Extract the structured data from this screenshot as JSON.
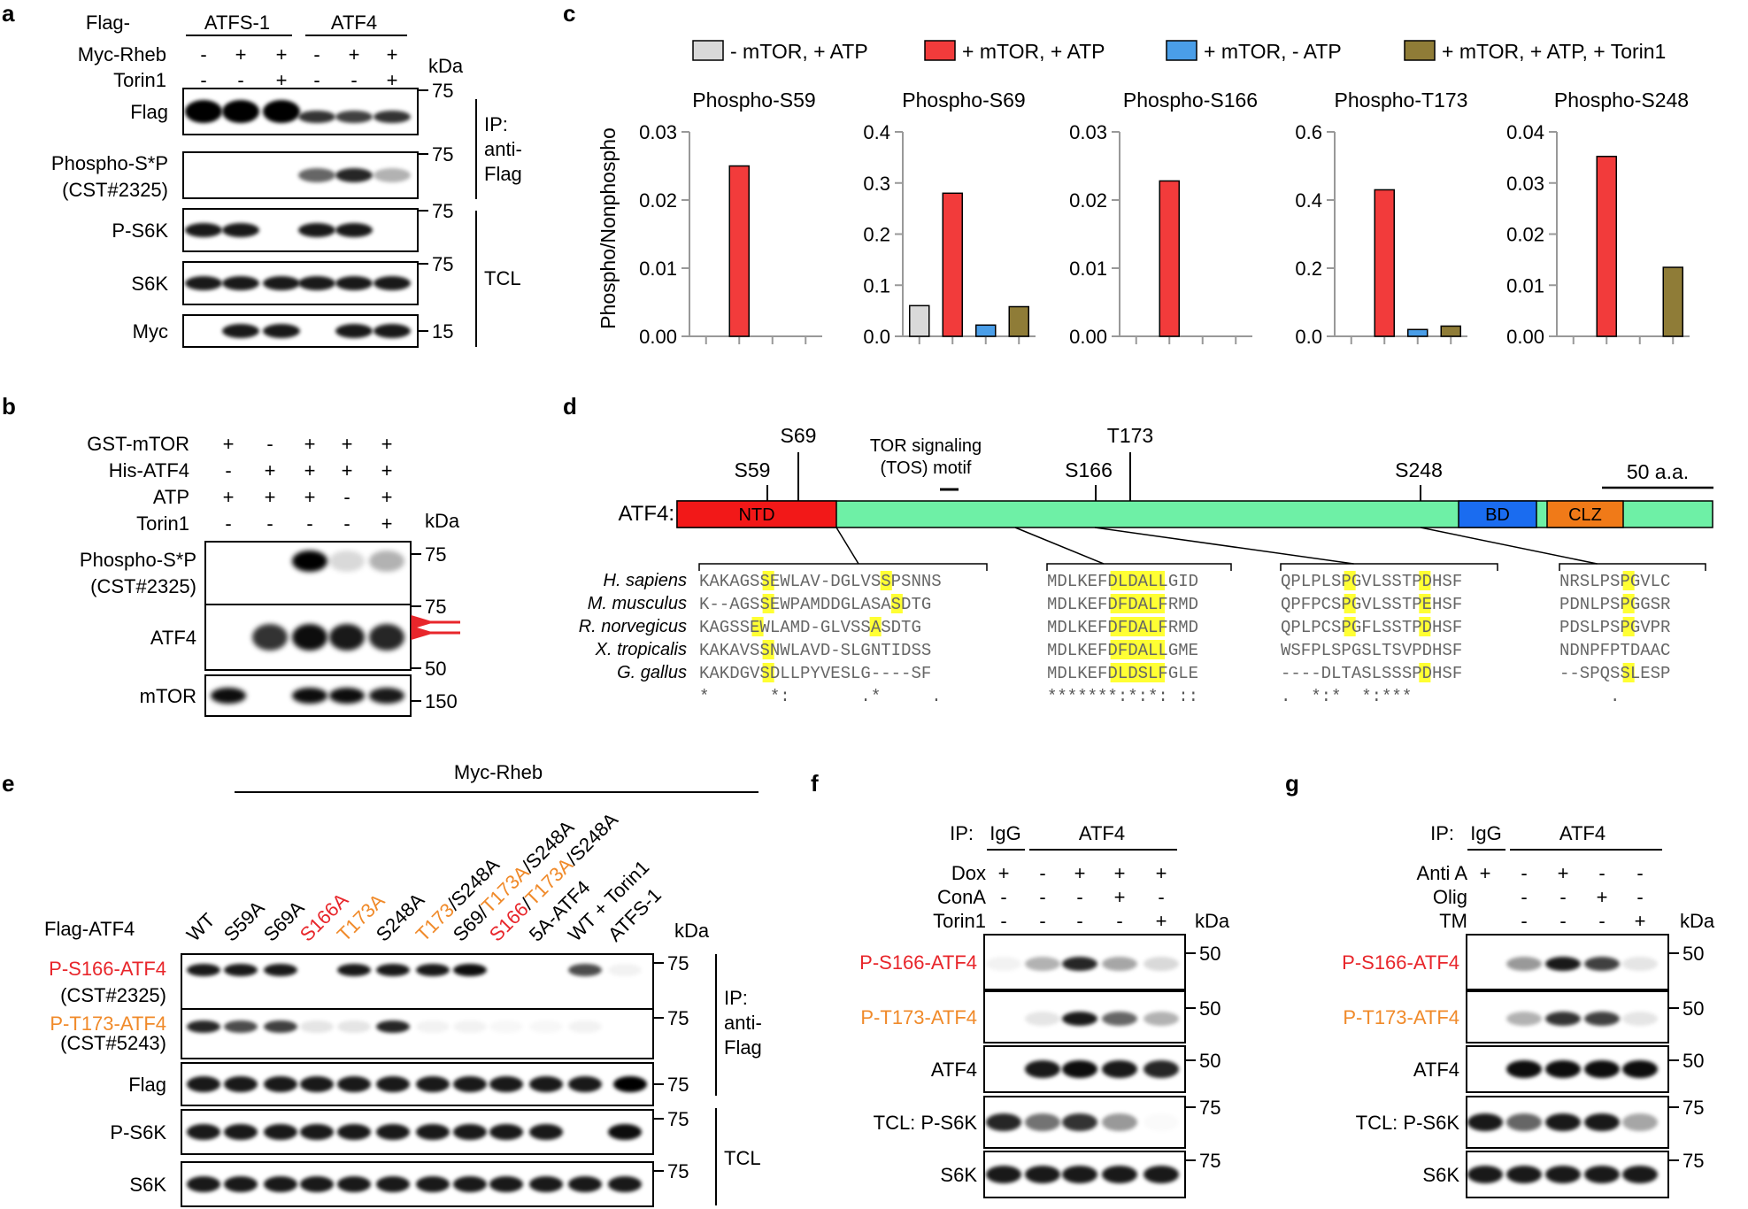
{
  "panel_letters": {
    "a": "a",
    "b": "b",
    "c": "c",
    "d": "d",
    "e": "e",
    "f": "f",
    "g": "g"
  },
  "colors": {
    "red": "#e8262b",
    "orange": "#f08a2a",
    "black": "#000000",
    "bar_gray": "#d9d9d9",
    "bar_red": "#f23b3b",
    "bar_blue": "#4a9ee8",
    "bar_olive": "#8f7c37",
    "ntd": "#f21818",
    "main": "#6ef0a6",
    "bd": "#1a6cf0",
    "clz": "#f07a18",
    "highlight": "#ffff33"
  },
  "panel_a": {
    "flag_label": "Flag-",
    "atfs1": "ATFS-1",
    "atf4": "ATF4",
    "row_labels": [
      "Myc-Rheb",
      "Torin1"
    ],
    "myc_rheb": [
      "-",
      "+",
      "+",
      "-",
      "+",
      "+"
    ],
    "torin1": [
      "-",
      "-",
      "+",
      "-",
      "-",
      "+"
    ],
    "kda": "kDa",
    "blots": [
      {
        "label": "Flag",
        "mw": "75"
      },
      {
        "label": "Phospho-S*P",
        "label2": "(CST#2325)",
        "mw": "75"
      },
      {
        "label": "P-S6K",
        "mw": "75"
      },
      {
        "label": "S6K",
        "mw": "75"
      },
      {
        "label": "Myc",
        "mw": "15"
      }
    ],
    "ip": [
      "IP:",
      "anti-",
      "Flag"
    ],
    "tcl": "TCL"
  },
  "panel_b": {
    "rows": [
      {
        "label": "GST-mTOR",
        "signs": [
          "+",
          "-",
          "+",
          "+",
          "+"
        ]
      },
      {
        "label": "His-ATF4",
        "signs": [
          "-",
          "+",
          "+",
          "+",
          "+"
        ]
      },
      {
        "label": "ATP",
        "signs": [
          "+",
          "+",
          "+",
          "-",
          "+"
        ]
      },
      {
        "label": "Torin1",
        "signs": [
          "-",
          "-",
          "-",
          "-",
          "+"
        ]
      }
    ],
    "kda": "kDa",
    "blots": [
      {
        "label": "Phospho-S*P",
        "label2": "(CST#2325)",
        "mw": "75"
      },
      {
        "label": "ATF4",
        "mw": "75",
        "mw2": "50"
      },
      {
        "label": "mTOR",
        "mw": "150"
      }
    ]
  },
  "chart_data": {
    "type": "bar",
    "legend": [
      "- mTOR, + ATP",
      "+ mTOR, + ATP",
      "+ mTOR, - ATP",
      "+ mTOR, + ATP, + Torin1"
    ],
    "ylabel": "Phospho/Nonphospho",
    "series_colors": [
      "#d9d9d9",
      "#f23b3b",
      "#4a9ee8",
      "#8f7c37"
    ],
    "subplots": [
      {
        "title": "Phospho-S59",
        "ylim": [
          0,
          0.03
        ],
        "ticks": [
          "0.00",
          "0.01",
          "0.02",
          "0.03"
        ],
        "tickvals": [
          0,
          0.01,
          0.02,
          0.03
        ],
        "values": [
          0,
          0.025,
          0,
          0
        ]
      },
      {
        "title": "Phospho-S69",
        "ylim": [
          0,
          0.4
        ],
        "ticks": [
          "0.0",
          "0.1",
          "0.2",
          "0.3",
          "0.4"
        ],
        "tickvals": [
          0,
          0.1,
          0.2,
          0.3,
          0.4
        ],
        "values": [
          0.06,
          0.28,
          0.022,
          0.058
        ]
      },
      {
        "title": "Phospho-S166",
        "ylim": [
          0,
          0.03
        ],
        "ticks": [
          "0.00",
          "0.01",
          "0.02",
          "0.03"
        ],
        "tickvals": [
          0,
          0.01,
          0.02,
          0.03
        ],
        "values": [
          0,
          0.0228,
          0,
          0
        ]
      },
      {
        "title": "Phospho-T173",
        "ylim": [
          0,
          0.6
        ],
        "ticks": [
          "0.0",
          "0.2",
          "0.4",
          "0.6"
        ],
        "tickvals": [
          0,
          0.2,
          0.4,
          0.6
        ],
        "values": [
          0,
          0.43,
          0.02,
          0.03
        ]
      },
      {
        "title": "Phospho-S248",
        "ylim": [
          0,
          0.04
        ],
        "ticks": [
          "0.00",
          "0.01",
          "0.02",
          "0.03",
          "0.04"
        ],
        "tickvals": [
          0,
          0.01,
          0.02,
          0.03,
          0.04
        ],
        "values": [
          0,
          0.0352,
          0,
          0.0135
        ]
      }
    ]
  },
  "panel_d": {
    "site_labels": [
      "S59",
      "S69",
      "T173",
      "S166",
      "S248"
    ],
    "tos": [
      "TOR signaling",
      "(TOS) motif"
    ],
    "scale": "50 a.a.",
    "protein": "ATF4:",
    "domains": [
      "NTD",
      "BD",
      "CLZ"
    ],
    "species": [
      "H. sapiens",
      "M. musculus",
      "R. norvegicus",
      "X. tropicalis",
      "G. gallus"
    ],
    "blocks": [
      [
        "KAKAGSSEWLAV-DGLVSSPSNNS",
        "K--AGSSEWPAMDDGLASASDTG",
        "KAGSSEWLAMD-GLVSSASDTG",
        "KAKAVSSNWLAVD-SLGNTIDSS",
        "KAKDGVSDLLPYVESLG----SF",
        "*      *:       .*     ."
      ],
      [
        "MDLKEFDLDALLGID",
        "MDLKEFDFDALFRMD",
        "MDLKEFDFDALFRMD",
        "MDLKEFDFDALLGME",
        "MDLKEFDLDSLFGLE",
        "*******:*:*: ::"
      ],
      [
        "QPLPLSPGVLSSTPDHSF",
        "QPFPCSPGVLSSTPEHSF",
        "QPLPCSPGFLSSTPDHSF",
        "WSFPLSPGSLTSVPDHSF",
        "----DLTASLSSSPDHSF",
        ".  *:*  *:***"
      ],
      [
        "NRSLPSPGVLC",
        "PDNLPSPGGSR",
        "PDSLPSPGVPR",
        "NDNPFPTDAAC",
        "--SPQSSLESP",
        "     ."
      ]
    ]
  },
  "panel_e": {
    "myc_rheb": "Myc-Rheb",
    "flag_atf4": "Flag-ATF4",
    "lanes": [
      {
        "parts": [
          [
            "WT",
            "k"
          ]
        ]
      },
      {
        "parts": [
          [
            "S59A",
            "k"
          ]
        ]
      },
      {
        "parts": [
          [
            "S69A",
            "k"
          ]
        ]
      },
      {
        "parts": [
          [
            "S166A",
            "r"
          ]
        ]
      },
      {
        "parts": [
          [
            "T173A",
            "o"
          ]
        ]
      },
      {
        "parts": [
          [
            "S248A",
            "k"
          ]
        ]
      },
      {
        "parts": [
          [
            "T173",
            "o"
          ],
          [
            "/S248A",
            "k"
          ]
        ]
      },
      {
        "parts": [
          [
            "S69/",
            "k"
          ],
          [
            "T173A",
            "o"
          ],
          [
            "/S248A",
            "k"
          ]
        ]
      },
      {
        "parts": [
          [
            "S166",
            "r"
          ],
          [
            "/",
            "k"
          ],
          [
            "T173A",
            "o"
          ],
          [
            "/S248A",
            "k"
          ]
        ]
      },
      {
        "parts": [
          [
            "5A-ATF4",
            "k"
          ]
        ]
      },
      {
        "parts": [
          [
            "WT + Torin1",
            "k"
          ]
        ]
      },
      {
        "parts": [
          [
            "ATFS-1",
            "k"
          ]
        ]
      }
    ],
    "kda": "kDa",
    "blots": [
      {
        "label": "P-S166-ATF4",
        "label2": "(CST#2325)",
        "color": "#e8262b",
        "mw": "75"
      },
      {
        "label": "P-T173-ATF4",
        "label2": "(CST#5243)",
        "color": "#f08a2a",
        "mw": "75"
      },
      {
        "label": "Flag",
        "mw": "75"
      },
      {
        "label": "P-S6K",
        "mw": "75"
      },
      {
        "label": "S6K",
        "mw": "75"
      }
    ],
    "ip": [
      "IP:",
      "anti-",
      "Flag"
    ],
    "tcl": "TCL"
  },
  "panel_f": {
    "ip": "IP:",
    "igg": "IgG",
    "atf4": "ATF4",
    "rows": [
      {
        "label": "Dox",
        "signs": [
          "+",
          "-",
          "+",
          "+",
          "+"
        ]
      },
      {
        "label": "ConA",
        "signs": [
          "-",
          "-",
          "-",
          "+",
          "-"
        ]
      },
      {
        "label": "Torin1",
        "signs": [
          "-",
          "-",
          "-",
          "-",
          "+"
        ]
      }
    ],
    "kda": "kDa",
    "blots": [
      {
        "label": "P-S166-ATF4",
        "color": "#e8262b",
        "mw": "50"
      },
      {
        "label": "P-T173-ATF4",
        "color": "#f08a2a",
        "mw": "50"
      },
      {
        "label": "ATF4",
        "mw": "50"
      },
      {
        "label": "TCL: P-S6K",
        "mw": "75"
      },
      {
        "label": "S6K",
        "mw": "75"
      }
    ]
  },
  "panel_g": {
    "ip": "IP:",
    "igg": "IgG",
    "atf4": "ATF4",
    "rows": [
      {
        "label": "Anti A",
        "signs": [
          "+",
          "-",
          "+",
          "-",
          "-"
        ]
      },
      {
        "label": "Olig",
        "signs": [
          "",
          "-",
          "-",
          "+",
          "-"
        ]
      },
      {
        "label": "TM",
        "signs": [
          "",
          "-",
          "-",
          "-",
          "+"
        ]
      }
    ],
    "kda": "kDa",
    "blots": [
      {
        "label": "P-S166-ATF4",
        "color": "#e8262b",
        "mw": "50"
      },
      {
        "label": "P-T173-ATF4",
        "color": "#f08a2a",
        "mw": "50"
      },
      {
        "label": "ATF4",
        "mw": "50"
      },
      {
        "label": "TCL: P-S6K",
        "mw": "75"
      },
      {
        "label": "S6K",
        "mw": "75"
      }
    ]
  }
}
